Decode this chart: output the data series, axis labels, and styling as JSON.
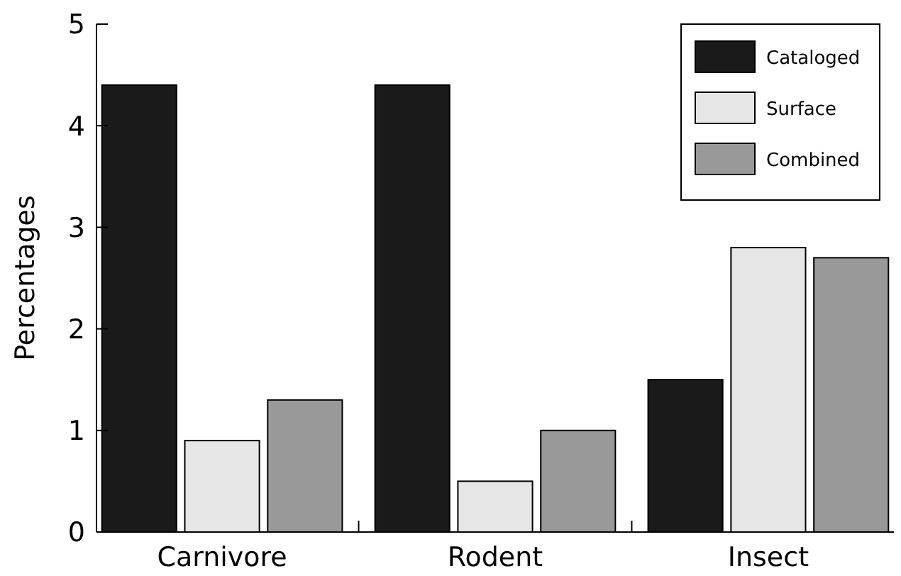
{
  "chart_data": {
    "type": "bar",
    "ylabel": "Percentages",
    "categories": [
      "Carnivore",
      "Rodent",
      "Insect"
    ],
    "series": [
      {
        "name": "Cataloged",
        "color": "#1a1a1a",
        "values": [
          4.4,
          4.4,
          1.5
        ]
      },
      {
        "name": "Surface",
        "color": "#e6e6e6",
        "values": [
          0.9,
          0.5,
          2.8
        ]
      },
      {
        "name": "Combined",
        "color": "#999999",
        "values": [
          1.3,
          1.0,
          2.7
        ]
      }
    ],
    "ylim": [
      0,
      5
    ],
    "yticks": [
      0,
      1,
      2,
      3,
      4,
      5
    ],
    "grid": false,
    "legend": "top right"
  }
}
